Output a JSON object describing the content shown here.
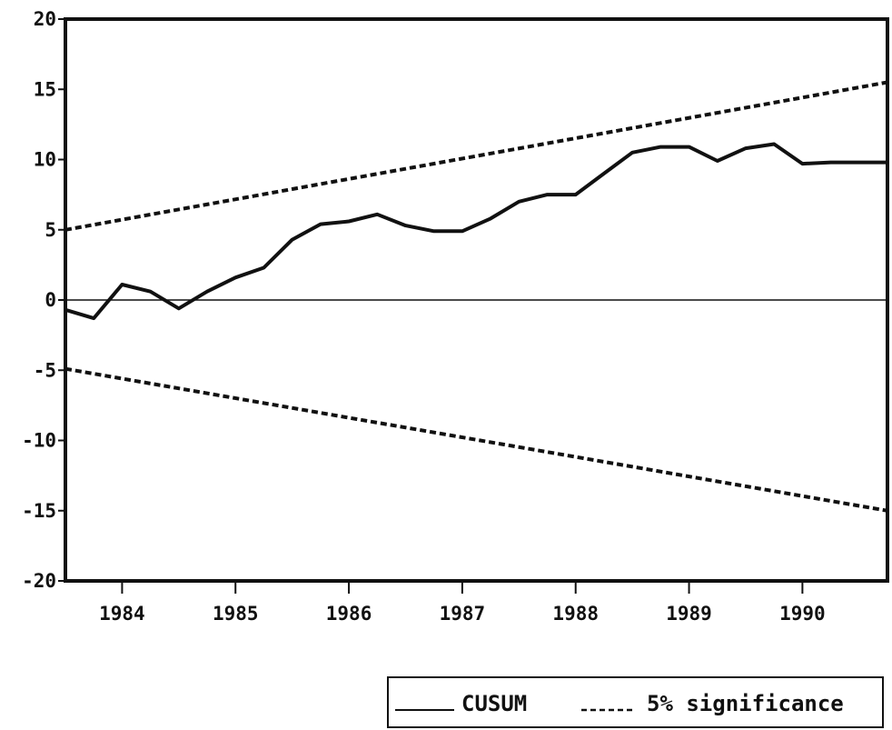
{
  "chart_data": {
    "type": "line",
    "title": "",
    "xlabel": "",
    "ylabel": "",
    "ylim": [
      -20,
      20
    ],
    "yticks": [
      20,
      15,
      10,
      5,
      0,
      -5,
      -10,
      -15,
      -20
    ],
    "xticks": [
      "1984",
      "1985",
      "1986",
      "1987",
      "1988",
      "1989",
      "1990"
    ],
    "xrange": [
      1983.5,
      1990.75
    ],
    "grid": false,
    "legend": "bottom-right",
    "series": [
      {
        "name": "CUSUM",
        "style": "solid",
        "x": [
          1983.5,
          1983.75,
          1984.0,
          1984.25,
          1984.5,
          1984.75,
          1985.0,
          1985.25,
          1985.5,
          1985.75,
          1986.0,
          1986.25,
          1986.5,
          1986.75,
          1987.0,
          1987.25,
          1987.5,
          1987.75,
          1988.0,
          1988.25,
          1988.5,
          1988.75,
          1989.0,
          1989.25,
          1989.5,
          1989.75,
          1990.0,
          1990.25,
          1990.5,
          1990.75
        ],
        "y": [
          -0.7,
          -1.3,
          1.1,
          0.6,
          -0.6,
          0.6,
          1.6,
          2.3,
          4.3,
          5.4,
          5.6,
          6.1,
          5.3,
          4.9,
          4.9,
          5.8,
          7.0,
          7.5,
          7.5,
          9.0,
          10.5,
          10.9,
          10.9,
          9.9,
          10.8,
          11.1,
          9.7,
          9.8,
          9.8,
          9.8
        ]
      },
      {
        "name": "5% significance",
        "style": "dashed",
        "x": [
          1983.5,
          1990.75
        ],
        "y": [
          5.0,
          15.5
        ]
      },
      {
        "name": "5% significance",
        "style": "dashed",
        "x": [
          1983.5,
          1990.75
        ],
        "y": [
          -4.9,
          -15.0
        ]
      }
    ],
    "zero_line": 0
  },
  "legend": {
    "cusum_label": "CUSUM",
    "significance_label": "5% significance"
  }
}
